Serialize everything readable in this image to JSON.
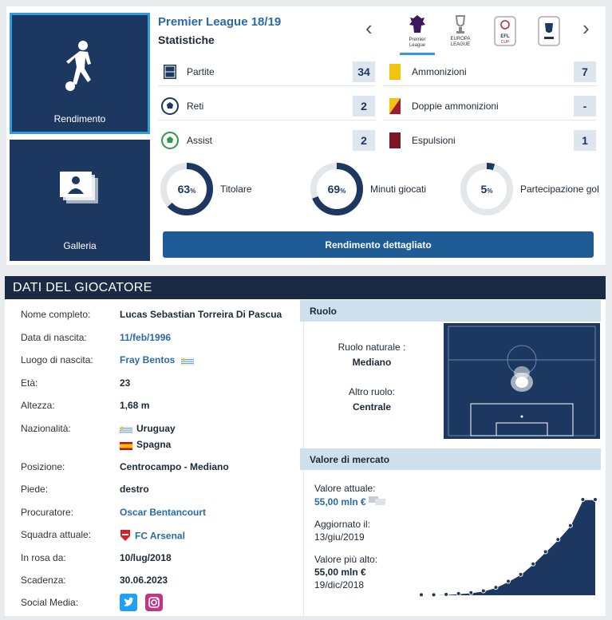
{
  "tiles": {
    "performance": "Rendimento",
    "gallery": "Galleria"
  },
  "competition": {
    "title": "Premier League 18/19",
    "subtitle": "Statistiche",
    "logos": [
      {
        "name": "premier-league",
        "caption": "Premier\nLeague"
      },
      {
        "name": "europa-league",
        "caption": "EUROPA\nLEAGUE"
      },
      {
        "name": "efl-cup",
        "caption": "EFL\nCUP"
      },
      {
        "name": "fa-cup",
        "caption": ""
      }
    ],
    "prev_arrow": "‹",
    "next_arrow": "›"
  },
  "stats": {
    "left": [
      {
        "label": "Partite",
        "value": "34",
        "icon": "pitch-icon"
      },
      {
        "label": "Reti",
        "value": "2",
        "icon": "ball-icon"
      },
      {
        "label": "Assist",
        "value": "2",
        "icon": "assist-ball-icon"
      }
    ],
    "right": [
      {
        "label": "Ammonizioni",
        "value": "7",
        "icon": "yellow-card-icon",
        "color": "#f2c40f"
      },
      {
        "label": "Doppie ammonizioni",
        "value": "-",
        "icon": "second-yellow-card-icon",
        "color": "#9e1b32"
      },
      {
        "label": "Espulsioni",
        "value": "1",
        "icon": "red-card-icon",
        "color": "#7a1626"
      }
    ]
  },
  "donuts": [
    {
      "pct": 63,
      "pct_text": "63",
      "unit": "%",
      "label": "Titolare"
    },
    {
      "pct": 69,
      "pct_text": "69",
      "unit": "%",
      "label": "Minuti giocati"
    },
    {
      "pct": 5,
      "pct_text": "5",
      "unit": "%",
      "label": "Partecipazione gol"
    }
  ],
  "detail_button": "Rendimento dettagliato",
  "player": {
    "header": "DATI DEL GIOCATORE",
    "rows": [
      {
        "k": "Nome completo:",
        "v": "Lucas Sebastian Torreira Di Pascua"
      },
      {
        "k": "Data di nascita:",
        "v": "11/feb/1996"
      },
      {
        "k": "Luogo di nascita:",
        "v": "Fray Bentos"
      },
      {
        "k": "Età:",
        "v": "23"
      },
      {
        "k": "Altezza:",
        "v": "1,68 m"
      },
      {
        "k": "Nazionalità:",
        "v": "Uruguay",
        "v2": "Spagna"
      },
      {
        "k": "Posizione:",
        "v": "Centrocampo - Mediano"
      },
      {
        "k": "Piede:",
        "v": "destro"
      },
      {
        "k": "Procuratore:",
        "v": "Oscar Bentancourt"
      },
      {
        "k": "Squadra attuale:",
        "v": "FC Arsenal"
      },
      {
        "k": "In rosa da:",
        "v": "10/lug/2018"
      },
      {
        "k": "Scadenza:",
        "v": "30.06.2023"
      },
      {
        "k": "Social Media:",
        "v": ""
      }
    ]
  },
  "role": {
    "header": "Ruolo",
    "natural_label": "Ruolo naturale :",
    "natural_value": "Mediano",
    "other_label": "Altro ruolo:",
    "other_value": "Centrale"
  },
  "market": {
    "header": "Valore di mercato",
    "current_label": "Valore attuale:",
    "current_value": "55,00 mln €",
    "updated_label": "Aggiornato il:",
    "updated_value": "13/giu/2019",
    "highest_label": "Valore più alto:",
    "highest_value": "55,00 mln €",
    "highest_date": "19/dic/2018",
    "chart_series": [
      0.3,
      0.3,
      0.5,
      1.0,
      1.5,
      2.5,
      4.5,
      8,
      12,
      18,
      25,
      32,
      40,
      55,
      55
    ]
  },
  "colors": {
    "navy": "#1d3860",
    "accent": "#2f9bda",
    "link": "#2a6aa8"
  }
}
